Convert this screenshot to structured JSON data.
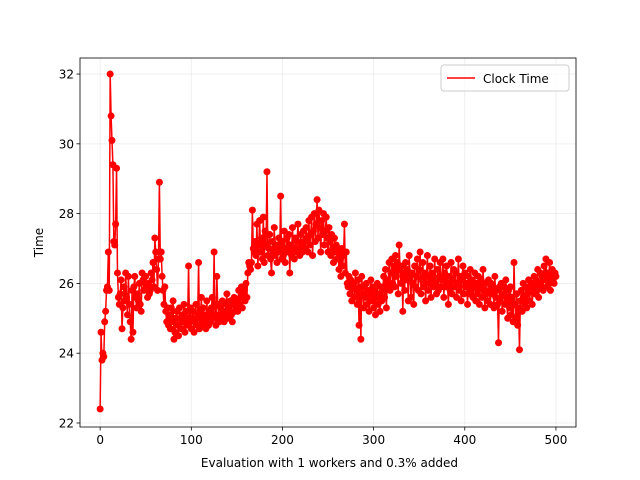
{
  "chart_data": {
    "type": "line",
    "xlabel": "Evaluation with 1 workers and 0.3% added",
    "ylabel": "Time",
    "xlim": [
      -22.1,
      522
    ],
    "ylim": [
      21.885,
      32.46
    ],
    "xticks": [
      0,
      100,
      200,
      300,
      400,
      500
    ],
    "yticks": [
      22,
      24,
      26,
      28,
      30,
      32
    ],
    "grid": true,
    "legend": "upper right",
    "marker": "circle",
    "x": [
      0,
      1,
      2,
      3,
      4,
      5,
      6,
      7,
      8,
      9,
      10,
      11,
      12,
      13,
      14,
      15,
      16,
      17,
      18,
      19,
      20,
      21,
      22,
      23,
      24,
      25,
      26,
      27,
      28,
      29,
      30,
      31,
      32,
      33,
      34,
      35,
      36,
      37,
      38,
      39,
      40,
      41,
      42,
      43,
      44,
      45,
      46,
      47,
      48,
      49,
      50,
      51,
      52,
      53,
      54,
      55,
      56,
      57,
      58,
      59,
      60,
      61,
      62,
      63,
      64,
      65,
      66,
      67,
      68,
      69,
      70,
      71,
      72,
      73,
      74,
      75,
      76,
      77,
      78,
      79,
      80,
      81,
      82,
      83,
      84,
      85,
      86,
      87,
      88,
      89,
      90,
      91,
      92,
      93,
      94,
      95,
      96,
      97,
      98,
      99,
      100,
      101,
      102,
      103,
      104,
      105,
      106,
      107,
      108,
      109,
      110,
      111,
      112,
      113,
      114,
      115,
      116,
      117,
      118,
      119,
      120,
      121,
      122,
      123,
      124,
      125,
      126,
      127,
      128,
      129,
      130,
      131,
      132,
      133,
      134,
      135,
      136,
      137,
      138,
      139,
      140,
      141,
      142,
      143,
      144,
      145,
      146,
      147,
      148,
      149,
      150,
      151,
      152,
      153,
      154,
      155,
      156,
      157,
      158,
      159,
      160,
      161,
      162,
      163,
      164,
      165,
      166,
      167,
      168,
      169,
      170,
      171,
      172,
      173,
      174,
      175,
      176,
      177,
      178,
      179,
      180,
      181,
      182,
      183,
      184,
      185,
      186,
      187,
      188,
      189,
      190,
      191,
      192,
      193,
      194,
      195,
      196,
      197,
      198,
      199,
      200,
      201,
      202,
      203,
      204,
      205,
      206,
      207,
      208,
      209,
      210,
      211,
      212,
      213,
      214,
      215,
      216,
      217,
      218,
      219,
      220,
      221,
      222,
      223,
      224,
      225,
      226,
      227,
      228,
      229,
      230,
      231,
      232,
      233,
      234,
      235,
      236,
      237,
      238,
      239,
      240,
      241,
      242,
      243,
      244,
      245,
      246,
      247,
      248,
      249,
      250,
      251,
      252,
      253,
      254,
      255,
      256,
      257,
      258,
      259,
      260,
      261,
      262,
      263,
      264,
      265,
      266,
      267,
      268,
      269,
      270,
      271,
      272,
      273,
      274,
      275,
      276,
      277,
      278,
      279,
      280,
      281,
      282,
      283,
      284,
      285,
      286,
      287,
      288,
      289,
      290,
      291,
      292,
      293,
      294,
      295,
      296,
      297,
      298,
      299,
      300,
      301,
      302,
      303,
      304,
      305,
      306,
      307,
      308,
      309,
      310,
      311,
      312,
      313,
      314,
      315,
      316,
      317,
      318,
      319,
      320,
      321,
      322,
      323,
      324,
      325,
      326,
      327,
      328,
      329,
      330,
      331,
      332,
      333,
      334,
      335,
      336,
      337,
      338,
      339,
      340,
      341,
      342,
      343,
      344,
      345,
      346,
      347,
      348,
      349,
      350,
      351,
      352,
      353,
      354,
      355,
      356,
      357,
      358,
      359,
      360,
      361,
      362,
      363,
      364,
      365,
      366,
      367,
      368,
      369,
      370,
      371,
      372,
      373,
      374,
      375,
      376,
      377,
      378,
      379,
      380,
      381,
      382,
      383,
      384,
      385,
      386,
      387,
      388,
      389,
      390,
      391,
      392,
      393,
      394,
      395,
      396,
      397,
      398,
      399,
      400,
      401,
      402,
      403,
      404,
      405,
      406,
      407,
      408,
      409,
      410,
      411,
      412,
      413,
      414,
      415,
      416,
      417,
      418,
      419,
      420,
      421,
      422,
      423,
      424,
      425,
      426,
      427,
      428,
      429,
      430,
      431,
      432,
      433,
      434,
      435,
      436,
      437,
      438,
      439,
      440,
      441,
      442,
      443,
      444,
      445,
      446,
      447,
      448,
      449,
      450,
      451,
      452,
      453,
      454,
      455,
      456,
      457,
      458,
      459,
      460,
      461,
      462,
      463,
      464,
      465,
      466,
      467,
      468,
      469,
      470,
      471,
      472,
      473,
      474,
      475,
      476,
      477,
      478,
      479,
      480,
      481,
      482,
      483,
      484,
      485,
      486,
      487,
      488,
      489,
      490,
      491,
      492,
      493,
      494,
      495,
      496,
      497,
      498,
      499,
      500
    ],
    "series": [
      {
        "name": "Clock Time",
        "color": "#ff0000",
        "values": [
          22.4,
          24.6,
          23.8,
          24.0,
          23.9,
          24.9,
          25.2,
          25.8,
          25.9,
          26.9,
          25.8,
          32.0,
          30.8,
          30.1,
          29.4,
          27.2,
          27.1,
          27.7,
          29.3,
          26.3,
          25.6,
          25.4,
          25.7,
          26.1,
          24.7,
          25.3,
          25.9,
          25.5,
          26.3,
          25.6,
          25.1,
          26.2,
          25.4,
          24.9,
          24.4,
          25.8,
          24.6,
          25.9,
          26.2,
          25.6,
          25.3,
          25.7,
          25.5,
          26.0,
          25.4,
          25.2,
          26.3,
          26.1,
          25.8,
          26.2,
          26.2,
          25.9,
          25.6,
          26.0,
          25.7,
          25.8,
          26.3,
          26.1,
          26.6,
          25.9,
          27.3,
          26.9,
          26.4,
          25.8,
          26.7,
          28.9,
          26.7,
          26.9,
          26.2,
          25.8,
          25.4,
          25.9,
          25.2,
          24.9,
          25.3,
          24.8,
          25.1,
          24.7,
          25.3,
          24.9,
          25.5,
          24.4,
          24.6,
          25.0,
          25.2,
          24.8,
          24.5,
          25.3,
          25.0,
          24.7,
          25.1,
          24.9,
          25.4,
          24.6,
          25.2,
          24.8,
          25.0,
          26.5,
          24.9,
          25.3,
          24.7,
          25.0,
          25.2,
          24.6,
          24.9,
          25.4,
          24.8,
          25.1,
          26.6,
          24.7,
          25.0,
          25.6,
          24.8,
          25.3,
          24.9,
          25.1,
          24.7,
          25.5,
          25.0,
          24.8,
          25.2,
          24.9,
          25.3,
          25.6,
          25.1,
          26.9,
          25.0,
          24.8,
          26.2,
          25.4,
          25.1,
          24.9,
          25.3,
          25.0,
          25.5,
          25.2,
          24.9,
          25.1,
          25.4,
          25.7,
          25.0,
          25.3,
          25.2,
          25.5,
          25.1,
          24.9,
          25.4,
          25.6,
          25.2,
          25.3,
          25.5,
          25.2,
          25.8,
          25.4,
          25.6,
          25.9,
          25.3,
          25.7,
          25.8,
          25.5,
          26.0,
          25.6,
          26.3,
          26.6,
          26.5,
          26.4,
          26.6,
          28.1,
          27.0,
          26.9,
          27.2,
          26.8,
          27.7,
          26.5,
          27.1,
          27.8,
          26.9,
          27.3,
          26.7,
          27.9,
          26.6,
          27.5,
          27.1,
          29.2,
          26.8,
          27.0,
          27.4,
          26.7,
          26.3,
          27.2,
          26.9,
          27.6,
          26.8,
          27.1,
          26.6,
          27.0,
          27.3,
          26.9,
          28.5,
          26.7,
          27.2,
          26.8,
          27.5,
          26.6,
          27.0,
          27.3,
          26.9,
          27.4,
          26.3,
          27.1,
          26.8,
          27.6,
          27.0,
          26.7,
          27.3,
          26.9,
          27.2,
          27.7,
          27.0,
          26.8,
          27.4,
          27.1,
          26.9,
          27.5,
          27.2,
          27.0,
          27.6,
          27.3,
          26.9,
          27.8,
          27.1,
          27.4,
          27.9,
          26.8,
          27.5,
          28.0,
          27.2,
          27.7,
          28.4,
          27.3,
          28.1,
          27.6,
          26.9,
          27.8,
          27.4,
          28.0,
          27.1,
          27.5,
          27.9,
          27.3,
          26.9,
          27.6,
          27.2,
          26.8,
          27.4,
          27.0,
          26.6,
          27.3,
          26.9,
          27.1,
          26.7,
          27.0,
          26.4,
          26.9,
          26.2,
          27.0,
          26.5,
          26.8,
          27.7,
          26.3,
          26.9,
          26.0,
          25.9,
          26.2,
          25.7,
          26.1,
          25.5,
          25.9,
          26.0,
          25.6,
          26.3,
          25.8,
          25.4,
          26.1,
          24.8,
          25.9,
          24.4,
          26.2,
          25.7,
          25.3,
          25.9,
          25.6,
          26.0,
          25.4,
          25.8,
          25.2,
          25.7,
          26.1,
          25.5,
          25.9,
          25.3,
          25.8,
          25.1,
          25.6,
          26.0,
          25.4,
          25.7,
          25.2,
          25.9,
          25.5,
          25.8,
          26.2,
          25.6,
          26.4,
          25.3,
          26.1,
          25.9,
          26.6,
          25.8,
          26.3,
          26.7,
          26.0,
          26.5,
          25.9,
          26.8,
          26.2,
          26.6,
          25.7,
          27.1,
          26.4,
          26.0,
          26.5,
          25.2,
          26.3,
          25.8,
          26.6,
          26.1,
          26.4,
          25.5,
          26.8,
          26.2,
          25.6,
          26.3,
          26.0,
          25.4,
          26.5,
          25.9,
          26.2,
          26.7,
          25.8,
          26.4,
          26.9,
          25.7,
          26.1,
          26.6,
          25.9,
          26.3,
          25.5,
          26.2,
          26.8,
          25.8,
          26.0,
          26.5,
          25.6,
          26.3,
          26.1,
          25.9,
          26.7,
          26.0,
          25.7,
          26.4,
          25.8,
          26.2,
          26.6,
          25.9,
          26.1,
          26.7,
          25.6,
          26.3,
          25.9,
          26.5,
          26.0,
          25.4,
          26.2,
          25.8,
          26.6,
          25.7,
          26.1,
          26.4,
          25.9,
          26.3,
          25.6,
          26.0,
          26.7,
          25.8,
          26.2,
          25.5,
          26.1,
          26.5,
          25.7,
          26.3,
          25.9,
          26.0,
          25.4,
          26.2,
          25.7,
          26.4,
          25.8,
          26.1,
          25.6,
          25.9,
          26.3,
          25.5,
          26.0,
          25.7,
          26.2,
          25.4,
          25.9,
          26.1,
          25.6,
          26.4,
          25.8,
          25.3,
          26.0,
          25.7,
          25.5,
          26.1,
          25.8,
          25.4,
          26.0,
          25.7,
          25.9,
          25.3,
          26.2,
          25.6,
          25.8,
          25.4,
          24.3,
          25.9,
          25.5,
          26.0,
          25.2,
          25.7,
          25.9,
          25.4,
          26.1,
          25.6,
          25.0,
          25.8,
          25.3,
          25.9,
          25.1,
          25.6,
          24.9,
          26.6,
          25.4,
          25.0,
          25.7,
          24.8,
          25.3,
          24.1,
          25.5,
          25.8,
          25.2,
          26.0,
          25.6,
          25.4,
          25.9,
          25.3,
          25.7,
          26.1,
          25.5,
          25.8,
          26.0,
          25.4,
          25.9,
          26.2,
          25.7,
          26.1,
          25.8,
          26.4,
          25.6,
          26.0,
          26.3,
          25.9,
          26.2,
          25.8,
          26.5,
          26.1,
          26.7,
          25.9,
          26.3,
          26.0,
          26.6,
          25.8,
          26.2,
          26.4,
          26.1,
          26.0,
          26.3,
          26.2
        ]
      }
    ]
  }
}
